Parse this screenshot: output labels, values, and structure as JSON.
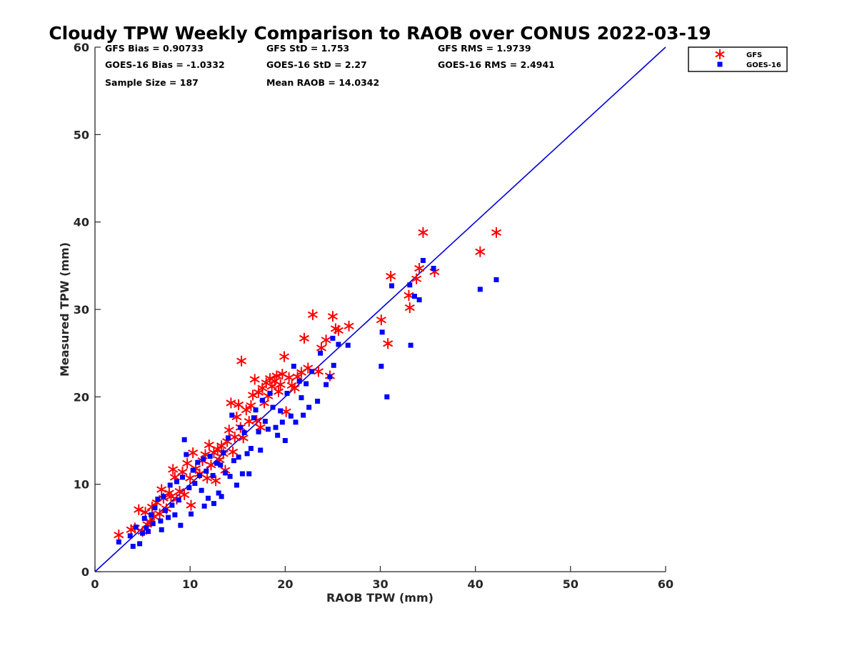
{
  "chart_data": {
    "type": "scatter",
    "title": "Cloudy TPW Weekly Comparison to RAOB over CONUS 2022-03-19",
    "xlabel": "RAOB TPW (mm)",
    "ylabel": "Measured TPW (mm)",
    "xlim": [
      0,
      60
    ],
    "ylim": [
      0,
      60
    ],
    "xticks": [
      "0",
      "10",
      "20",
      "30",
      "40",
      "50",
      "60"
    ],
    "yticks": [
      "0",
      "10",
      "20",
      "30",
      "40",
      "50",
      "60"
    ],
    "grid": false,
    "legend_position": "outside top-right",
    "reference_line": {
      "x": [
        0,
        60
      ],
      "y": [
        0,
        60
      ],
      "color": "#0000dd"
    },
    "stats": [
      [
        "GFS Bias = 0.90733",
        "GFS StD = 1.753",
        "GFS RMS = 1.9739"
      ],
      [
        "GOES-16 Bias = -1.0332",
        "GOES-16 StD = 2.27",
        "GOES-16 RMS = 2.4941"
      ],
      [
        "Sample Size = 187",
        "Mean RAOB = 14.0342",
        ""
      ]
    ],
    "series": [
      {
        "name": "GFS",
        "marker": "asterisk",
        "color": "#ff0000",
        "points": [
          [
            2.5,
            4.2
          ],
          [
            3.8,
            4.8
          ],
          [
            4.2,
            5.0
          ],
          [
            4.6,
            7.1
          ],
          [
            5.0,
            4.6
          ],
          [
            5.3,
            6.8
          ],
          [
            5.5,
            5.4
          ],
          [
            5.8,
            5.7
          ],
          [
            6.0,
            7.4
          ],
          [
            6.2,
            6.3
          ],
          [
            6.5,
            7.9
          ],
          [
            6.8,
            6.6
          ],
          [
            7.0,
            9.4
          ],
          [
            7.2,
            8.4
          ],
          [
            7.5,
            7.2
          ],
          [
            7.8,
            9.0
          ],
          [
            8.0,
            8.6
          ],
          [
            8.2,
            11.7
          ],
          [
            8.4,
            10.8
          ],
          [
            8.6,
            8.3
          ],
          [
            8.9,
            9.2
          ],
          [
            9.2,
            11.4
          ],
          [
            9.4,
            8.8
          ],
          [
            9.7,
            12.4
          ],
          [
            10.0,
            10.7
          ],
          [
            10.1,
            7.6
          ],
          [
            10.3,
            13.6
          ],
          [
            10.6,
            11.8
          ],
          [
            11.0,
            11.2
          ],
          [
            11.3,
            12.7
          ],
          [
            11.6,
            13.4
          ],
          [
            11.8,
            10.7
          ],
          [
            12.0,
            14.5
          ],
          [
            12.2,
            12.2
          ],
          [
            12.5,
            13.6
          ],
          [
            12.7,
            10.4
          ],
          [
            12.9,
            14.0
          ],
          [
            13.1,
            12.8
          ],
          [
            13.3,
            14.4
          ],
          [
            13.5,
            13.5
          ],
          [
            13.7,
            11.6
          ],
          [
            13.9,
            14.9
          ],
          [
            14.1,
            16.2
          ],
          [
            14.3,
            19.3
          ],
          [
            14.5,
            13.7
          ],
          [
            14.7,
            15.4
          ],
          [
            14.9,
            17.7
          ],
          [
            15.1,
            19.1
          ],
          [
            15.3,
            16.5
          ],
          [
            15.4,
            24.1
          ],
          [
            15.6,
            15.3
          ],
          [
            15.9,
            18.5
          ],
          [
            16.2,
            17.2
          ],
          [
            16.4,
            19.0
          ],
          [
            16.6,
            20.2
          ],
          [
            16.8,
            22.0
          ],
          [
            17.0,
            17.3
          ],
          [
            17.2,
            20.5
          ],
          [
            17.4,
            16.5
          ],
          [
            17.6,
            21.0
          ],
          [
            17.8,
            19.3
          ],
          [
            18.0,
            21.6
          ],
          [
            18.2,
            20.1
          ],
          [
            18.4,
            22.1
          ],
          [
            18.6,
            21.2
          ],
          [
            18.9,
            21.8
          ],
          [
            19.1,
            22.4
          ],
          [
            19.3,
            20.6
          ],
          [
            19.5,
            21.4
          ],
          [
            19.7,
            22.6
          ],
          [
            19.9,
            24.6
          ],
          [
            20.1,
            18.3
          ],
          [
            20.4,
            22.2
          ],
          [
            20.7,
            21.3
          ],
          [
            21.0,
            21.0
          ],
          [
            21.3,
            22.3
          ],
          [
            21.7,
            22.8
          ],
          [
            22.0,
            26.7
          ],
          [
            22.4,
            23.3
          ],
          [
            22.9,
            29.4
          ],
          [
            23.5,
            22.9
          ],
          [
            23.8,
            25.6
          ],
          [
            24.3,
            26.5
          ],
          [
            24.7,
            22.4
          ],
          [
            25.0,
            29.2
          ],
          [
            25.3,
            27.8
          ],
          [
            25.6,
            27.6
          ],
          [
            26.7,
            28.1
          ],
          [
            30.1,
            28.8
          ],
          [
            30.8,
            26.1
          ],
          [
            31.1,
            33.8
          ],
          [
            33.0,
            31.6
          ],
          [
            33.1,
            30.2
          ],
          [
            33.8,
            33.5
          ],
          [
            34.1,
            34.7
          ],
          [
            34.5,
            38.8
          ],
          [
            35.7,
            34.3
          ],
          [
            40.5,
            36.6
          ],
          [
            42.2,
            38.8
          ]
        ]
      },
      {
        "name": "GOES-16",
        "marker": "square",
        "color": "#0000ff",
        "points": [
          [
            2.5,
            3.4
          ],
          [
            3.7,
            4.1
          ],
          [
            4.0,
            2.9
          ],
          [
            4.3,
            5.1
          ],
          [
            4.7,
            3.2
          ],
          [
            5.0,
            4.4
          ],
          [
            5.2,
            6.1
          ],
          [
            5.4,
            5.0
          ],
          [
            5.6,
            4.6
          ],
          [
            5.9,
            6.5
          ],
          [
            6.1,
            5.5
          ],
          [
            6.3,
            7.3
          ],
          [
            6.6,
            8.3
          ],
          [
            6.9,
            5.8
          ],
          [
            7.0,
            4.8
          ],
          [
            7.2,
            8.6
          ],
          [
            7.4,
            7.0
          ],
          [
            7.7,
            6.2
          ],
          [
            7.9,
            9.9
          ],
          [
            8.1,
            7.6
          ],
          [
            8.4,
            6.5
          ],
          [
            8.6,
            10.3
          ],
          [
            8.8,
            8.2
          ],
          [
            9.0,
            5.3
          ],
          [
            9.2,
            10.8
          ],
          [
            9.4,
            15.1
          ],
          [
            9.6,
            13.4
          ],
          [
            9.9,
            9.6
          ],
          [
            10.1,
            6.6
          ],
          [
            10.3,
            11.6
          ],
          [
            10.5,
            10.1
          ],
          [
            10.8,
            12.5
          ],
          [
            11.0,
            11.0
          ],
          [
            11.2,
            9.3
          ],
          [
            11.4,
            12.9
          ],
          [
            11.5,
            7.5
          ],
          [
            11.7,
            11.5
          ],
          [
            11.9,
            8.4
          ],
          [
            12.1,
            13.2
          ],
          [
            12.4,
            11.0
          ],
          [
            12.5,
            7.8
          ],
          [
            12.8,
            12.4
          ],
          [
            13.0,
            9.0
          ],
          [
            13.2,
            12.2
          ],
          [
            13.3,
            8.6
          ],
          [
            13.5,
            13.6
          ],
          [
            13.7,
            11.3
          ],
          [
            14.0,
            15.3
          ],
          [
            14.2,
            10.9
          ],
          [
            14.4,
            17.9
          ],
          [
            14.6,
            12.7
          ],
          [
            14.9,
            9.9
          ],
          [
            15.1,
            13.1
          ],
          [
            15.3,
            16.5
          ],
          [
            15.5,
            11.2
          ],
          [
            15.7,
            15.9
          ],
          [
            16.0,
            13.5
          ],
          [
            16.2,
            11.2
          ],
          [
            16.4,
            14.1
          ],
          [
            16.7,
            17.6
          ],
          [
            16.9,
            18.5
          ],
          [
            17.2,
            16.0
          ],
          [
            17.4,
            13.9
          ],
          [
            17.6,
            19.6
          ],
          [
            17.9,
            17.2
          ],
          [
            18.2,
            16.3
          ],
          [
            18.4,
            20.4
          ],
          [
            18.7,
            18.8
          ],
          [
            19.0,
            16.5
          ],
          [
            19.2,
            15.6
          ],
          [
            19.5,
            18.4
          ],
          [
            19.7,
            17.1
          ],
          [
            20.0,
            15.0
          ],
          [
            20.2,
            20.4
          ],
          [
            20.6,
            17.8
          ],
          [
            20.9,
            23.5
          ],
          [
            21.1,
            17.1
          ],
          [
            21.5,
            21.8
          ],
          [
            21.7,
            19.9
          ],
          [
            21.9,
            17.9
          ],
          [
            22.2,
            21.5
          ],
          [
            22.5,
            18.8
          ],
          [
            22.8,
            22.9
          ],
          [
            23.4,
            19.5
          ],
          [
            23.7,
            25.0
          ],
          [
            24.3,
            21.4
          ],
          [
            24.7,
            22.3
          ],
          [
            25.0,
            26.7
          ],
          [
            25.1,
            23.6
          ],
          [
            25.6,
            26.0
          ],
          [
            26.6,
            25.9
          ],
          [
            30.1,
            23.5
          ],
          [
            30.2,
            27.4
          ],
          [
            30.7,
            20.0
          ],
          [
            31.2,
            32.7
          ],
          [
            33.1,
            32.8
          ],
          [
            33.2,
            25.9
          ],
          [
            33.6,
            31.5
          ],
          [
            34.1,
            31.1
          ],
          [
            34.5,
            35.6
          ],
          [
            35.6,
            34.7
          ],
          [
            40.5,
            32.3
          ],
          [
            42.2,
            33.4
          ]
        ]
      }
    ]
  }
}
